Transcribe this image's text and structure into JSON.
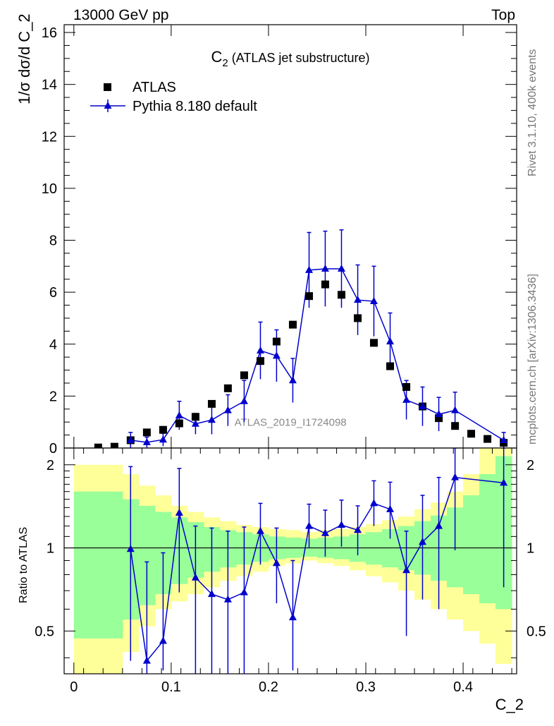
{
  "header": {
    "left": "13000 GeV pp",
    "right": "Top"
  },
  "side_labels": {
    "rivet": "Rivet 3.1.10,  400k events",
    "mcplots": "mcplots.cern.ch [arXiv:1306.3436]"
  },
  "chart_data": [
    {
      "type": "scatter",
      "panel": "main",
      "title": "C₂ (ATLAS jet substructure)",
      "title_main": "C",
      "title_sub": "2",
      "title_rest": " (ATLAS jet substructure)",
      "analysis_id": "ATLAS_2019_I1724098",
      "ylabel": "1/σ dσ/d C_2",
      "xlabel": "C_2",
      "xlim": [
        -0.01,
        0.455
      ],
      "ylim": [
        0,
        16.3
      ],
      "yticks": [
        0,
        2,
        4,
        6,
        8,
        10,
        12,
        14,
        16
      ],
      "legend_position": "top-left",
      "series": [
        {
          "name": "ATLAS",
          "color": "#000000",
          "marker": "square",
          "x": [
            0.025,
            0.0417,
            0.0583,
            0.075,
            0.0917,
            0.1083,
            0.125,
            0.1417,
            0.1583,
            0.175,
            0.1917,
            0.2083,
            0.225,
            0.2417,
            0.2583,
            0.275,
            0.2917,
            0.3083,
            0.325,
            0.3417,
            0.3583,
            0.375,
            0.3917,
            0.4083,
            0.425,
            0.4417
          ],
          "y": [
            0.02,
            0.05,
            0.3,
            0.6,
            0.7,
            0.95,
            1.2,
            1.7,
            2.3,
            2.8,
            3.35,
            4.1,
            4.75,
            5.85,
            6.3,
            5.9,
            5.0,
            4.05,
            3.15,
            2.35,
            1.6,
            1.15,
            0.85,
            0.55,
            0.35,
            0.2
          ]
        },
        {
          "name": "Pythia 8.180 default",
          "color": "#0000cc",
          "marker": "triangle",
          "x": [
            0.0583,
            0.075,
            0.0917,
            0.1083,
            0.125,
            0.1417,
            0.1583,
            0.175,
            0.1917,
            0.2083,
            0.225,
            0.2417,
            0.2583,
            0.275,
            0.2917,
            0.3083,
            0.325,
            0.3417,
            0.3583,
            0.375,
            0.3917,
            0.4417
          ],
          "y": [
            0.3,
            0.22,
            0.32,
            1.25,
            0.93,
            1.08,
            1.45,
            1.8,
            3.75,
            3.55,
            2.6,
            6.85,
            6.9,
            6.9,
            5.7,
            5.65,
            4.1,
            1.85,
            1.6,
            1.3,
            1.45,
            0.3
          ],
          "err": [
            0.3,
            0.2,
            0.25,
            0.55,
            0.4,
            0.55,
            0.6,
            0.8,
            1.1,
            1.0,
            0.85,
            1.45,
            1.45,
            1.5,
            1.35,
            1.35,
            1.1,
            0.75,
            0.75,
            0.65,
            0.7,
            0.3
          ]
        }
      ]
    },
    {
      "type": "line",
      "panel": "ratio",
      "ylabel": "Ratio to ATLAS",
      "xlabel": "C_2",
      "xlim": [
        -0.01,
        0.455
      ],
      "ylim": [
        0.35,
        2.3
      ],
      "scale": "log",
      "yticks": [
        0.5,
        1,
        2
      ],
      "xticks": [
        0,
        0.1,
        0.2,
        0.3,
        0.4
      ],
      "reference_line": 1,
      "bands": {
        "bin_edges": [
          0.0,
          0.0167,
          0.0333,
          0.05,
          0.0667,
          0.0833,
          0.1,
          0.1167,
          0.1333,
          0.15,
          0.1667,
          0.1833,
          0.2,
          0.2167,
          0.2333,
          0.25,
          0.2667,
          0.2833,
          0.3,
          0.3167,
          0.3333,
          0.35,
          0.3667,
          0.3833,
          0.4,
          0.4167,
          0.4333,
          0.45
        ],
        "green_lo": [
          0.47,
          0.47,
          0.47,
          0.55,
          0.62,
          0.68,
          0.74,
          0.78,
          0.82,
          0.85,
          0.87,
          0.89,
          0.91,
          0.92,
          0.93,
          0.92,
          0.91,
          0.89,
          0.87,
          0.85,
          0.83,
          0.8,
          0.76,
          0.72,
          0.68,
          0.63,
          0.6
        ],
        "green_hi": [
          1.6,
          1.6,
          1.6,
          1.5,
          1.42,
          1.35,
          1.29,
          1.24,
          1.19,
          1.16,
          1.14,
          1.12,
          1.1,
          1.09,
          1.08,
          1.09,
          1.1,
          1.12,
          1.14,
          1.17,
          1.2,
          1.25,
          1.31,
          1.4,
          1.55,
          1.85,
          2.15
        ],
        "yellow_lo": [
          0.35,
          0.35,
          0.35,
          0.42,
          0.52,
          0.6,
          0.64,
          0.68,
          0.72,
          0.76,
          0.79,
          0.82,
          0.86,
          0.88,
          0.9,
          0.88,
          0.86,
          0.83,
          0.79,
          0.75,
          0.7,
          0.65,
          0.6,
          0.55,
          0.5,
          0.45,
          0.38
        ],
        "yellow_hi": [
          2.0,
          2.0,
          2.0,
          1.85,
          1.68,
          1.55,
          1.42,
          1.35,
          1.29,
          1.25,
          1.21,
          1.19,
          1.17,
          1.16,
          1.14,
          1.16,
          1.17,
          1.19,
          1.22,
          1.26,
          1.3,
          1.38,
          1.46,
          1.6,
          1.85,
          2.3,
          2.3
        ]
      },
      "series": [
        {
          "name": "Pythia 8.180 default",
          "color": "#0000cc",
          "marker": "triangle",
          "x": [
            0.0583,
            0.075,
            0.0917,
            0.1083,
            0.125,
            0.1417,
            0.1583,
            0.175,
            0.1917,
            0.2083,
            0.225,
            0.2417,
            0.2583,
            0.275,
            0.2917,
            0.3083,
            0.325,
            0.3417,
            0.3583,
            0.375,
            0.3917,
            0.4417
          ],
          "y": [
            0.99,
            0.39,
            0.46,
            1.34,
            0.78,
            0.68,
            0.65,
            0.69,
            1.15,
            0.88,
            0.56,
            1.2,
            1.13,
            1.21,
            1.16,
            1.45,
            1.38,
            0.83,
            1.05,
            1.2,
            1.8,
            1.72
          ],
          "err_lo": [
            0.6,
            0.04,
            0.1,
            0.65,
            0.45,
            0.4,
            0.35,
            0.35,
            0.28,
            0.25,
            0.2,
            0.2,
            0.2,
            0.2,
            0.22,
            0.25,
            0.3,
            0.35,
            0.4,
            0.6,
            0.82,
            1.0
          ],
          "err_hi": [
            0.98,
            0.5,
            0.5,
            0.6,
            0.42,
            0.5,
            0.5,
            0.5,
            0.3,
            0.3,
            0.34,
            0.24,
            0.24,
            0.28,
            0.26,
            0.3,
            0.35,
            0.32,
            0.5,
            0.6,
            0.6,
            0.6
          ]
        }
      ]
    }
  ]
}
